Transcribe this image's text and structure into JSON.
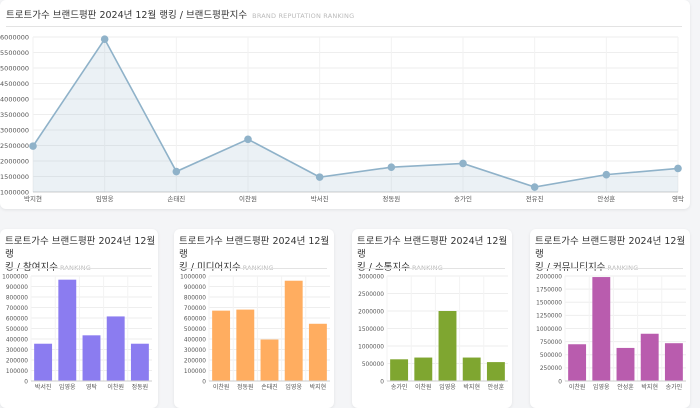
{
  "main": {
    "title": "트로트가수 브랜드평판 2024년 12월 랭킹 / 브랜드평판지수",
    "subtitle": "BRAND REPUTATION RANKING"
  },
  "cards": [
    {
      "title_line1": "트로트가수 브랜드평판 2024년 12월 랭",
      "title_line2": "킹 / 참여지수",
      "subtitle": "RANKING"
    },
    {
      "title_line1": "트로트가수 브랜드평판 2024년 12월 랭",
      "title_line2": "킹 / 미디어지수",
      "subtitle": "RANKING"
    },
    {
      "title_line1": "트로트가수 브랜드평판 2024년 12월 랭",
      "title_line2": "킹 / 소통지수",
      "subtitle": "RANKING"
    },
    {
      "title_line1": "트로트가수 브랜드평판 2024년 12월 랭",
      "title_line2": "킹 / 커뮤니티지수",
      "subtitle": "RANKING"
    }
  ],
  "chart_data": [
    {
      "type": "area",
      "title": "트로트가수 브랜드평판 2024년 12월 랭킹 / 브랜드평판지수",
      "categories": [
        "박지현",
        "임영웅",
        "손태진",
        "이찬원",
        "박서진",
        "정동원",
        "송가인",
        "전유진",
        "안성훈",
        "영탁"
      ],
      "values": [
        2480000,
        5930000,
        1660000,
        2700000,
        1480000,
        1800000,
        1920000,
        1160000,
        1560000,
        1760000
      ],
      "ylim": [
        1000000,
        6000000
      ],
      "yticks": [
        "1000000",
        "1500000",
        "2000000",
        "2500000",
        "3000000",
        "3500000",
        "4000000",
        "4500000",
        "5000000",
        "5500000",
        "6000000"
      ],
      "grid": true,
      "color": "#8fb2c9"
    },
    {
      "type": "bar",
      "categories": [
        "박서진",
        "임영웅",
        "영탁",
        "이찬원",
        "정동원"
      ],
      "values": [
        355000,
        965000,
        435000,
        615000,
        355000
      ],
      "ylim": [
        0,
        1000000
      ],
      "yticks": [
        "0",
        "100000",
        "200000",
        "300000",
        "400000",
        "500000",
        "600000",
        "700000",
        "800000",
        "900000",
        "1000000"
      ],
      "color": "#8b7cf0"
    },
    {
      "type": "bar",
      "categories": [
        "이찬원",
        "정동원",
        "손태진",
        "임영웅",
        "박지현"
      ],
      "values": [
        670000,
        680000,
        395000,
        955000,
        545000
      ],
      "ylim": [
        0,
        1000000
      ],
      "yticks": [
        "0",
        "100000",
        "200000",
        "300000",
        "400000",
        "500000",
        "600000",
        "700000",
        "800000",
        "900000",
        "1000000"
      ],
      "color": "#ffad60"
    },
    {
      "type": "bar",
      "categories": [
        "송가인",
        "이찬원",
        "임영웅",
        "박지현",
        "안성훈"
      ],
      "values": [
        620000,
        670000,
        2000000,
        670000,
        540000
      ],
      "ylim": [
        0,
        3000000
      ],
      "yticks": [
        "0",
        "500000",
        "1000000",
        "1500000",
        "2000000",
        "2500000",
        "3000000"
      ],
      "color": "#7fa630"
    },
    {
      "type": "bar",
      "categories": [
        "이찬원",
        "임영웅",
        "안성훈",
        "박지현",
        "송가인"
      ],
      "values": [
        700000,
        1980000,
        630000,
        900000,
        720000
      ],
      "ylim": [
        0,
        2000000
      ],
      "yticks": [
        "0",
        "250000",
        "500000",
        "750000",
        "1000000",
        "1250000",
        "1500000",
        "1750000",
        "2000000"
      ],
      "color": "#b95cae"
    }
  ]
}
